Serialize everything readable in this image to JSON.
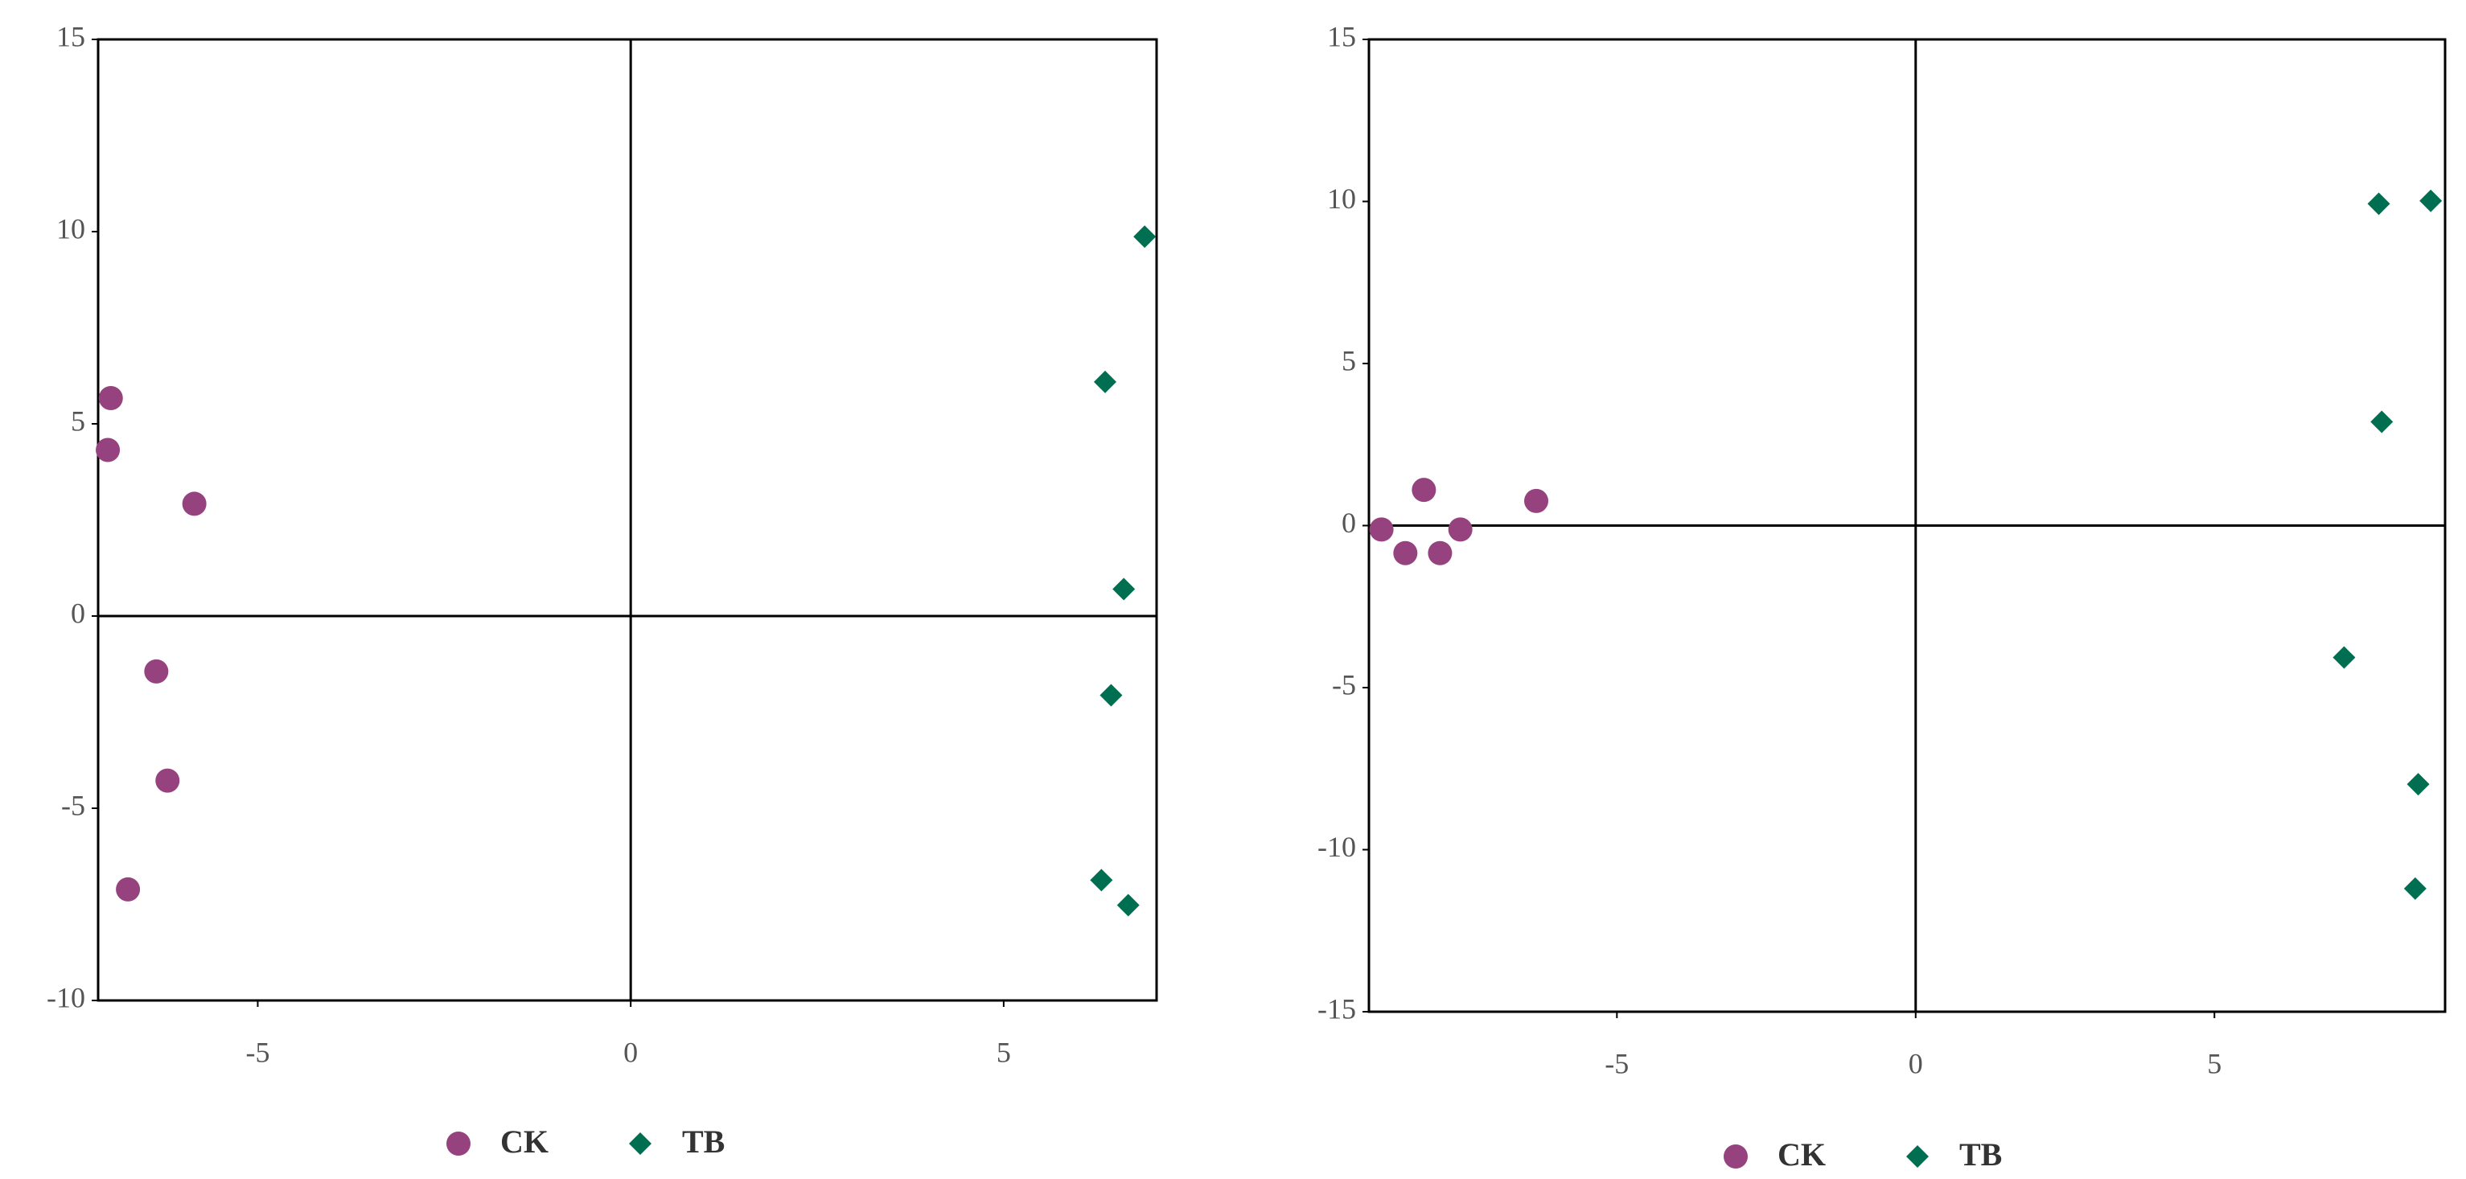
{
  "chart_data": [
    {
      "type": "scatter",
      "xlim": [
        -7.14,
        7.05
      ],
      "ylim": [
        -10,
        15
      ],
      "xticks": [
        -5,
        0,
        5
      ],
      "yticks": [
        -10,
        -5,
        0,
        5,
        10,
        15
      ],
      "legend": "bottom",
      "series": [
        {
          "name": "CK",
          "color": "#96427e",
          "marker": "circle",
          "x": [
            -6.97,
            -7.01,
            -5.85,
            -6.36,
            -6.21,
            -6.74
          ],
          "values": [
            5.67,
            4.32,
            2.92,
            -1.44,
            -4.28,
            -7.11
          ]
        },
        {
          "name": "TB",
          "color": "#006e50",
          "marker": "diamond",
          "x": [
            6.89,
            6.36,
            6.61,
            6.44,
            6.31,
            6.67
          ],
          "values": [
            9.87,
            6.09,
            0.7,
            -2.06,
            -6.87,
            -7.52
          ]
        }
      ]
    },
    {
      "type": "scatter",
      "xlim": [
        -9.15,
        8.86
      ],
      "ylim": [
        -15,
        15
      ],
      "xticks": [
        -5,
        0,
        5
      ],
      "yticks": [
        -15,
        -10,
        -5,
        0,
        5,
        10,
        15
      ],
      "legend": "bottom",
      "series": [
        {
          "name": "CK",
          "color": "#96427e",
          "marker": "circle",
          "x": [
            -8.94,
            -8.54,
            -8.23,
            -7.96,
            -7.62,
            -6.35
          ],
          "values": [
            -0.12,
            -0.85,
            1.1,
            -0.85,
            -0.12,
            0.76
          ]
        },
        {
          "name": "TB",
          "color": "#006e50",
          "marker": "diamond",
          "x": [
            7.75,
            8.62,
            7.8,
            7.17,
            8.41,
            8.36
          ],
          "values": [
            9.93,
            10.02,
            3.2,
            -4.07,
            -7.98,
            -11.2
          ]
        }
      ]
    }
  ]
}
